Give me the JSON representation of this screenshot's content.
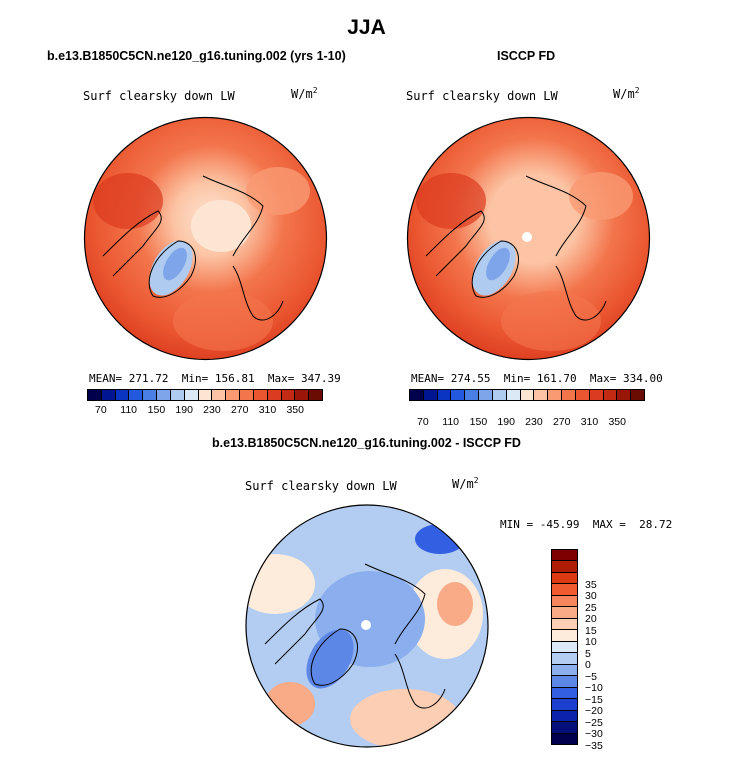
{
  "season": "JJA",
  "colors": {
    "abs": [
      "#00004c",
      "#001591",
      "#0a34c2",
      "#2359de",
      "#4a7fe6",
      "#7ea5ea",
      "#b0cbf0",
      "#dbe8f6",
      "#fde5d3",
      "#fcc4a4",
      "#f99a73",
      "#f3754c",
      "#ea5630",
      "#db3b1e",
      "#c32a14",
      "#9a1608",
      "#6b0c02"
    ],
    "diff": [
      "#7f0000",
      "#b01d04",
      "#de3a12",
      "#f05c2f",
      "#f6845c",
      "#f9aa87",
      "#fcceb3",
      "#fdecdc",
      "#dce9f7",
      "#b3ccf2",
      "#8aaeee",
      "#5d87e6",
      "#3360e3",
      "#1c3fd0",
      "#0d22ac",
      "#050f7c",
      "#00004f"
    ]
  },
  "panels": {
    "model": {
      "title": "b.e13.B1850C5CN.ne120_g16.tuning.002 (yrs 1-10)",
      "variable": "Surf clearsky down LW",
      "units_base": "W/m",
      "units_exp": "2",
      "mean_label": "MEAN=",
      "mean": "271.72",
      "min_label": "Min=",
      "min": "156.81",
      "max_label": "Max=",
      "max": "347.39"
    },
    "obs": {
      "title": "ISCCP FD",
      "variable": "Surf clearsky down LW",
      "units_base": "W/m",
      "units_exp": "2",
      "mean_label": "MEAN=",
      "mean": "274.55",
      "min_label": "Min=",
      "min": "161.70",
      "max_label": "Max=",
      "max": "334.00"
    },
    "diff": {
      "title": "b.e13.B1850C5CN.ne120_g16.tuning.002 - ISCCP FD",
      "variable": "Surf clearsky down LW",
      "units_base": "W/m",
      "units_exp": "2",
      "min_label": "MIN =",
      "min": "-45.99",
      "max_label": "MAX =",
      "max": "28.72"
    }
  },
  "chart_data": [
    {
      "type": "heatmap",
      "projection": "north-polar-stereographic",
      "title": "b.e13.B1850C5CN.ne120_g16.tuning.002 (yrs 1-10)",
      "colorbar_levels": [
        70,
        110,
        150,
        190,
        230,
        270,
        310,
        350
      ],
      "colorbar_orientation": "horizontal",
      "stats": {
        "mean": 271.72,
        "min": 156.81,
        "max": 347.39
      },
      "pattern": {
        "pole": 232,
        "arctic_ocean": 255,
        "greenland": 185,
        "mid_latitudes": 320
      }
    },
    {
      "type": "heatmap",
      "projection": "north-polar-stereographic",
      "title": "ISCCP FD",
      "colorbar_levels": [
        70,
        110,
        150,
        190,
        230,
        270,
        310,
        350
      ],
      "colorbar_orientation": "horizontal",
      "stats": {
        "mean": 274.55,
        "min": 161.7,
        "max": 334.0
      },
      "pattern": {
        "pole": 240,
        "arctic_ocean": 258,
        "greenland": 190,
        "mid_latitudes": 318
      }
    },
    {
      "type": "heatmap",
      "projection": "north-polar-stereographic",
      "title": "b.e13.B1850C5CN.ne120_g16.tuning.002 - ISCCP FD",
      "colorbar_levels": [
        35,
        30,
        25,
        20,
        15,
        10,
        5,
        0,
        -5,
        -10,
        -15,
        -20,
        -25,
        -30,
        -35
      ],
      "colorbar_orientation": "vertical",
      "stats": {
        "min": -45.99,
        "max": 28.72
      },
      "pattern": {
        "arctic_ocean": -12,
        "greenland": -22,
        "north_atlantic": 5,
        "siberia": -8
      }
    }
  ]
}
